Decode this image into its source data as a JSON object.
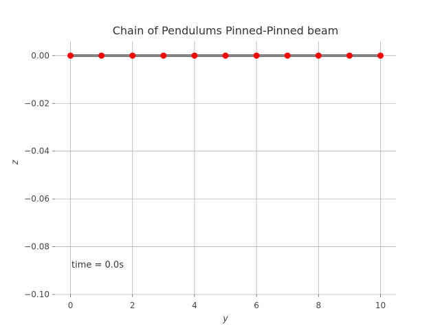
{
  "chart_data": {
    "type": "line",
    "title": "Chain of Pendulums Pinned-Pinned beam",
    "xlabel": "y",
    "ylabel": "z",
    "xlim": [
      -0.5,
      10.5
    ],
    "ylim": [
      -0.1,
      0.006
    ],
    "xticks": [
      0,
      2,
      4,
      6,
      8,
      10
    ],
    "xtick_labels": [
      "0",
      "2",
      "4",
      "6",
      "8",
      "10"
    ],
    "yticks": [
      0.0,
      -0.02,
      -0.04,
      -0.06,
      -0.08,
      -0.1
    ],
    "ytick_labels": [
      "0.00",
      "−0.02",
      "−0.04",
      "−0.06",
      "−0.08",
      "−0.10"
    ],
    "grid": true,
    "series": [
      {
        "x": [
          0,
          1,
          2,
          3,
          4,
          5,
          6,
          7,
          8,
          9,
          10
        ],
        "y": [
          0,
          0,
          0,
          0,
          0,
          0,
          0,
          0,
          0,
          0,
          0
        ],
        "line_color": "#000000",
        "marker_color": "#ff0000"
      }
    ],
    "annotation": "time = 0.0s"
  }
}
